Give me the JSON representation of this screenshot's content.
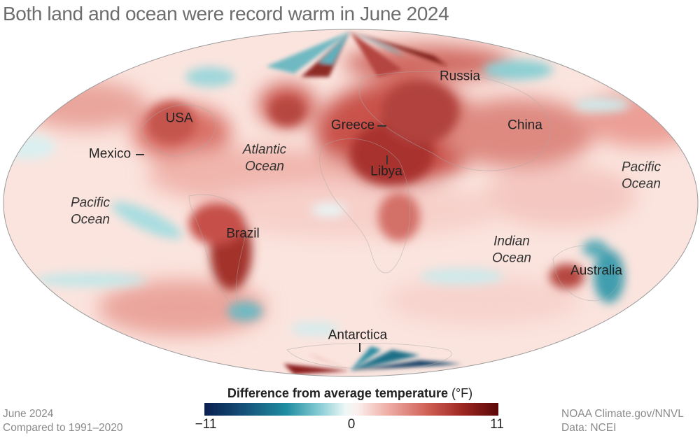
{
  "title": "Both land and ocean were record warm in June 2024",
  "labels": {
    "russia": "Russia",
    "usa": "USA",
    "greece": "Greece",
    "china": "China",
    "mexico": "Mexico",
    "libya": "Libya",
    "brazil": "Brazil",
    "australia": "Australia",
    "antarctica": "Antarctica",
    "atlantic_line1": "Atlantic",
    "atlantic_line2": "Ocean",
    "pacific_w_line1": "Pacific",
    "pacific_w_line2": "Ocean",
    "pacific_e_line1": "Pacific",
    "pacific_e_line2": "Ocean",
    "indian_line1": "Indian",
    "indian_line2": "Ocean"
  },
  "legend": {
    "title": "Difference from average temperature",
    "unit": "(°F)",
    "min": "−11",
    "mid": "0",
    "max": "11",
    "scale_min": -11,
    "scale_max": 11,
    "colors": [
      "#0a1f4f",
      "#1f8ea1",
      "#eef7f7",
      "#fbf0ee",
      "#cf5f55",
      "#5a0707"
    ]
  },
  "footer": {
    "left_line1": "June 2024",
    "left_line2": "Compared to 1991–2020",
    "right_line1": "NOAA Climate.gov/NNVL",
    "right_line2": "Data: NCEI"
  }
}
